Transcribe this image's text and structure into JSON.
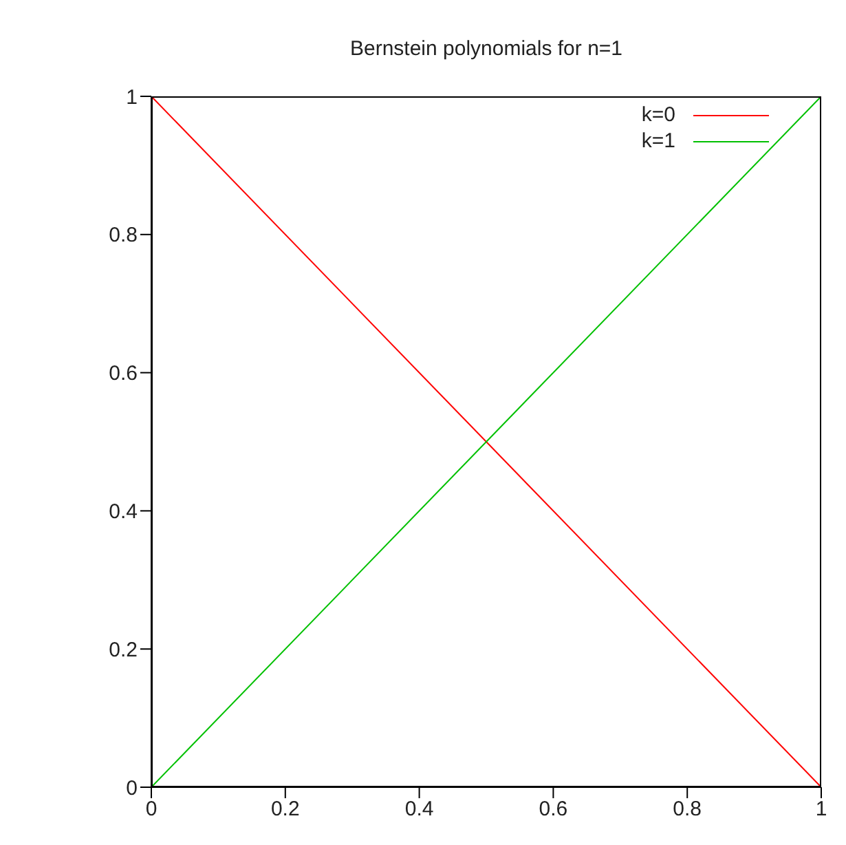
{
  "chart_data": {
    "type": "line",
    "title": "Bernstein polynomials for n=1",
    "x": [
      0,
      1
    ],
    "series": [
      {
        "name": "k=0",
        "color": "#ff0000",
        "values": [
          1,
          0
        ]
      },
      {
        "name": "k=1",
        "color": "#00c000",
        "values": [
          0,
          1
        ]
      }
    ],
    "xlim": [
      0,
      1
    ],
    "xticks": [
      0,
      0.2,
      0.4,
      0.6,
      0.8,
      1
    ],
    "ylim": [
      0,
      1
    ],
    "yticks": [
      0,
      0.2,
      0.4,
      0.6,
      0.8,
      1
    ],
    "grid": false,
    "legend": "top right",
    "marker": "none",
    "line_style": "solid"
  }
}
